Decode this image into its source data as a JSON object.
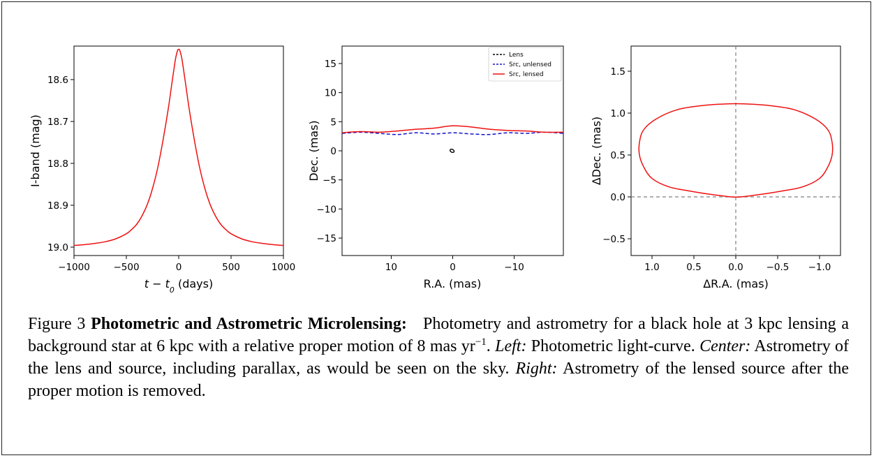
{
  "figure": {
    "caption": {
      "figure_label": "Figure 3",
      "title": "Photometric and Astrometric Microlensing:",
      "text_1": "Photometry and astrometry for a black hole at 3 kpc lensing a background star at 6 kpc with a relative proper motion of 8 mas yr",
      "exponent": "−1",
      "text_2": ". ",
      "left_label": "Left:",
      "left_text": " Photometric light-curve. ",
      "center_label": "Center:",
      "center_text": " Astrometry of the lens and source, including parallax, as would be seen on the sky. ",
      "right_label": "Right:",
      "right_text": " Astrometry of the lensed source after the proper motion is removed."
    }
  },
  "colors": {
    "lensed": "#ee1111",
    "unlensed": "#1111cc",
    "lens": "#000000",
    "guide": "#7f7f7f"
  },
  "chart_data": [
    {
      "type": "line",
      "panel": "left",
      "xlabel_main": "t − t",
      "xlabel_sub": "0",
      "xlabel_unit": " (days)",
      "ylabel": "I-band (mag)",
      "xlim": [
        -1000,
        1000
      ],
      "ylim": [
        19.02,
        18.52
      ],
      "y_inverted": true,
      "x_ticks": [
        "−1000",
        "−500",
        "0",
        "500",
        "1000"
      ],
      "x_tick_values": [
        -1000,
        -500,
        0,
        500,
        1000
      ],
      "y_ticks": [
        "18.6",
        "18.7",
        "18.8",
        "18.9",
        "19.0"
      ],
      "y_tick_values": [
        18.6,
        18.7,
        18.8,
        18.9,
        19.0
      ],
      "series": [
        {
          "color": "lensed",
          "x": [
            -1000,
            -900,
            -800,
            -700,
            -600,
            -500,
            -450,
            -400,
            -350,
            -300,
            -250,
            -200,
            -150,
            -100,
            -60,
            -30,
            -10,
            0,
            10,
            30,
            60,
            100,
            150,
            200,
            250,
            300,
            350,
            400,
            450,
            500,
            600,
            700,
            800,
            900,
            1000
          ],
          "y": [
            18.996,
            18.994,
            18.991,
            18.987,
            18.98,
            18.968,
            18.958,
            18.945,
            18.925,
            18.898,
            18.86,
            18.81,
            18.745,
            18.67,
            18.6,
            18.55,
            18.53,
            18.528,
            18.53,
            18.55,
            18.6,
            18.67,
            18.745,
            18.81,
            18.86,
            18.898,
            18.925,
            18.945,
            18.958,
            18.968,
            18.98,
            18.987,
            18.991,
            18.994,
            18.996
          ]
        }
      ]
    },
    {
      "type": "line",
      "panel": "center",
      "xlabel": "R.A. (mas)",
      "ylabel": "Dec. (mas)",
      "xlim": [
        18,
        -18
      ],
      "ylim": [
        -18,
        18
      ],
      "x_ticks": [
        "10",
        "0",
        "−10"
      ],
      "x_tick_values": [
        10,
        0,
        -10
      ],
      "y_ticks": [
        "−15",
        "−10",
        "−5",
        "0",
        "5",
        "10",
        "15"
      ],
      "y_tick_values": [
        -15,
        -10,
        -5,
        0,
        5,
        10,
        15
      ],
      "legend": {
        "position": "top-right",
        "entries": [
          "Lens",
          "Src, unlensed",
          "Src, lensed"
        ]
      },
      "series": [
        {
          "name": "Lens",
          "color": "lens",
          "style": "dashed",
          "ellipse": {
            "cx": 0.1,
            "cy": 0,
            "rx": 0.35,
            "ry": 0.25
          }
        },
        {
          "name": "Src, unlensed",
          "color": "unlensed",
          "style": "dashed",
          "x": [
            18,
            15,
            12,
            9,
            6,
            3,
            0,
            -3,
            -6,
            -9,
            -12,
            -15,
            -18
          ],
          "y": [
            3.0,
            3.2,
            3.0,
            2.8,
            3.1,
            2.9,
            3.1,
            2.9,
            2.8,
            3.1,
            3.0,
            3.2,
            3.0
          ]
        },
        {
          "name": "Src, lensed",
          "color": "lensed",
          "style": "solid",
          "x": [
            18,
            15,
            12,
            9,
            6,
            3,
            0,
            -3,
            -6,
            -9,
            -12,
            -15,
            -18
          ],
          "y": [
            3.1,
            3.3,
            3.2,
            3.4,
            3.7,
            3.9,
            4.3,
            4.1,
            3.7,
            3.5,
            3.4,
            3.2,
            3.2
          ]
        }
      ]
    },
    {
      "type": "line",
      "panel": "right",
      "xlabel": "ΔR.A. (mas)",
      "ylabel": "ΔDec. (mas)",
      "xlim": [
        1.25,
        -1.25
      ],
      "ylim": [
        -0.7,
        1.8
      ],
      "x_ticks": [
        "1.0",
        "0.5",
        "0.0",
        "−0.5",
        "−1.0"
      ],
      "x_tick_values": [
        1.0,
        0.5,
        0.0,
        -0.5,
        -1.0
      ],
      "y_ticks": [
        "−0.5",
        "0.0",
        "0.5",
        "1.0",
        "1.5"
      ],
      "y_tick_values": [
        -0.5,
        0.0,
        0.5,
        1.0,
        1.5
      ],
      "series": [
        {
          "color": "lensed",
          "style": "solid",
          "x": [
            0.06,
            0.3,
            0.55,
            0.8,
            1.0,
            1.1,
            1.15,
            1.15,
            1.1,
            0.95,
            0.7,
            0.4,
            0.1,
            -0.1,
            -0.4,
            -0.7,
            -0.95,
            -1.1,
            -1.15,
            -1.15,
            -1.1,
            -1.0,
            -0.8,
            -0.55,
            -0.3,
            -0.06,
            0.06
          ],
          "y": [
            0.0,
            0.03,
            0.07,
            0.12,
            0.22,
            0.36,
            0.5,
            0.65,
            0.8,
            0.93,
            1.04,
            1.09,
            1.11,
            1.11,
            1.09,
            1.04,
            0.93,
            0.8,
            0.65,
            0.5,
            0.36,
            0.22,
            0.12,
            0.07,
            0.03,
            0.0,
            0.0
          ]
        }
      ]
    }
  ]
}
